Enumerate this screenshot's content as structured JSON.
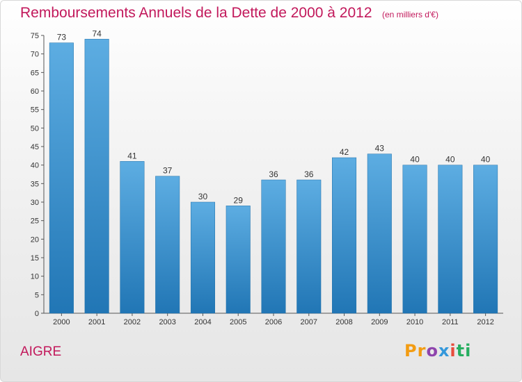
{
  "header": {
    "title": "Remboursements Annuels de la Dette de 2000 à 2012",
    "subtitle": "(en milliers d'€)"
  },
  "footer": {
    "place": "AIGRE",
    "logo_text": "Proxiti",
    "logo_letters": [
      "Pr",
      "o",
      "x",
      "i",
      "ti"
    ]
  },
  "colors": {
    "title": "#c2185b",
    "bar_top": "#5dade2",
    "bar_bottom": "#2176b5"
  },
  "chart_data": {
    "type": "bar",
    "title": "Remboursements Annuels de la Dette de 2000 à 2012",
    "subtitle": "(en milliers d'€)",
    "categories": [
      "2000",
      "2001",
      "2002",
      "2003",
      "2004",
      "2005",
      "2006",
      "2007",
      "2008",
      "2009",
      "2010",
      "2011",
      "2012"
    ],
    "values": [
      73,
      74,
      41,
      37,
      30,
      29,
      36,
      36,
      42,
      43,
      40,
      40,
      40
    ],
    "ylim": [
      0,
      75
    ],
    "yticks": [
      0,
      5,
      10,
      15,
      20,
      25,
      30,
      35,
      40,
      45,
      50,
      55,
      60,
      65,
      70,
      75
    ],
    "grid": false,
    "data_labels": true
  }
}
